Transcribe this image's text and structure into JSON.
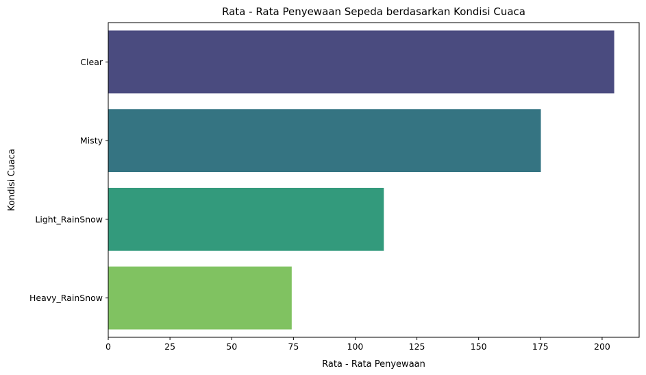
{
  "chart_data": {
    "type": "bar",
    "orientation": "horizontal",
    "title": "Rata - Rata Penyewaan Sepeda berdasarkan Kondisi Cuaca",
    "xlabel": "Rata - Rata Penyewaan",
    "ylabel": "Kondisi Cuaca",
    "categories": [
      "Clear",
      "Misty",
      "Light_RainSnow",
      "Heavy_RainSnow"
    ],
    "values": [
      204.9,
      175.2,
      111.6,
      74.3
    ],
    "colors": [
      "#4a4b7f",
      "#357482",
      "#339a7c",
      "#80c261"
    ],
    "xlim": [
      0,
      215
    ],
    "xticks": [
      0,
      25,
      50,
      75,
      100,
      125,
      150,
      175,
      200
    ],
    "grid": false,
    "legend": "none"
  }
}
